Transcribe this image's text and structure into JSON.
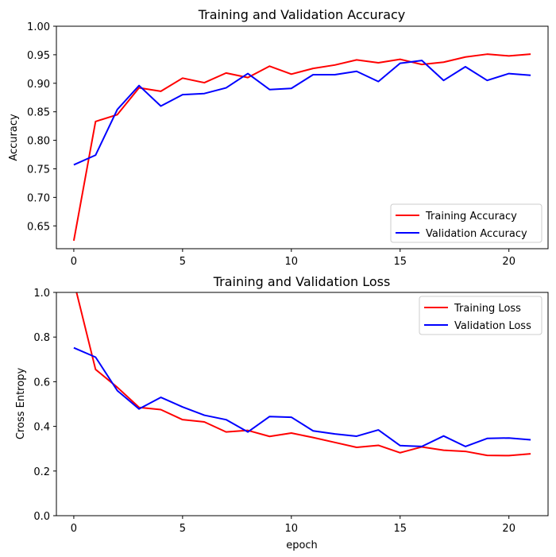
{
  "chart_data": [
    {
      "type": "line",
      "title": "Training and Validation Accuracy",
      "xlabel": "",
      "ylabel": "Accuracy",
      "xlim": [
        -0.8,
        21.8
      ],
      "ylim": [
        0.61,
        1.0
      ],
      "xticks": [
        0,
        5,
        10,
        15,
        20
      ],
      "yticks": [
        0.65,
        0.7,
        0.75,
        0.8,
        0.85,
        0.9,
        0.95,
        1.0
      ],
      "ytick_labels": [
        "0.65",
        "0.70",
        "0.75",
        "0.80",
        "0.85",
        "0.90",
        "0.95",
        "1.00"
      ],
      "legend": "lower right",
      "grid": false,
      "x": [
        0,
        1,
        2,
        3,
        4,
        5,
        6,
        7,
        8,
        9,
        10,
        11,
        12,
        13,
        14,
        15,
        16,
        17,
        18,
        19,
        20,
        21
      ],
      "series": [
        {
          "name": "Training Accuracy",
          "color": "#ff0000",
          "values": [
            0.624,
            0.833,
            0.845,
            0.892,
            0.886,
            0.909,
            0.901,
            0.918,
            0.91,
            0.93,
            0.916,
            0.926,
            0.932,
            0.941,
            0.936,
            0.942,
            0.933,
            0.937,
            0.946,
            0.951,
            0.948,
            0.951
          ]
        },
        {
          "name": "Validation Accuracy",
          "color": "#0000ff",
          "values": [
            0.757,
            0.774,
            0.854,
            0.896,
            0.86,
            0.88,
            0.882,
            0.892,
            0.917,
            0.889,
            0.891,
            0.915,
            0.915,
            0.921,
            0.903,
            0.935,
            0.94,
            0.905,
            0.929,
            0.905,
            0.917,
            0.914
          ]
        }
      ]
    },
    {
      "type": "line",
      "title": "Training and Validation Loss",
      "xlabel": "epoch",
      "ylabel": "Cross Entropy",
      "xlim": [
        -0.8,
        21.8
      ],
      "ylim": [
        0.0,
        1.0
      ],
      "xticks": [
        0,
        5,
        10,
        15,
        20
      ],
      "yticks": [
        0.0,
        0.2,
        0.4,
        0.6,
        0.8,
        1.0
      ],
      "ytick_labels": [
        "0.0",
        "0.2",
        "0.4",
        "0.6",
        "0.8",
        "1.0"
      ],
      "legend": "upper right",
      "grid": false,
      "x": [
        0,
        1,
        2,
        3,
        4,
        5,
        6,
        7,
        8,
        9,
        10,
        11,
        12,
        13,
        14,
        15,
        16,
        17,
        18,
        19,
        20,
        21
      ],
      "series": [
        {
          "name": "Training Loss",
          "color": "#ff0000",
          "values": [
            1.05,
            0.655,
            0.575,
            0.485,
            0.475,
            0.43,
            0.42,
            0.375,
            0.382,
            0.355,
            0.37,
            0.35,
            0.328,
            0.306,
            0.315,
            0.282,
            0.308,
            0.293,
            0.288,
            0.27,
            0.269,
            0.277
          ]
        },
        {
          "name": "Validation Loss",
          "color": "#0000ff",
          "values": [
            0.752,
            0.71,
            0.56,
            0.478,
            0.53,
            0.487,
            0.45,
            0.43,
            0.375,
            0.444,
            0.441,
            0.38,
            0.366,
            0.356,
            0.384,
            0.314,
            0.31,
            0.357,
            0.31,
            0.346,
            0.348,
            0.34
          ]
        }
      ]
    }
  ]
}
